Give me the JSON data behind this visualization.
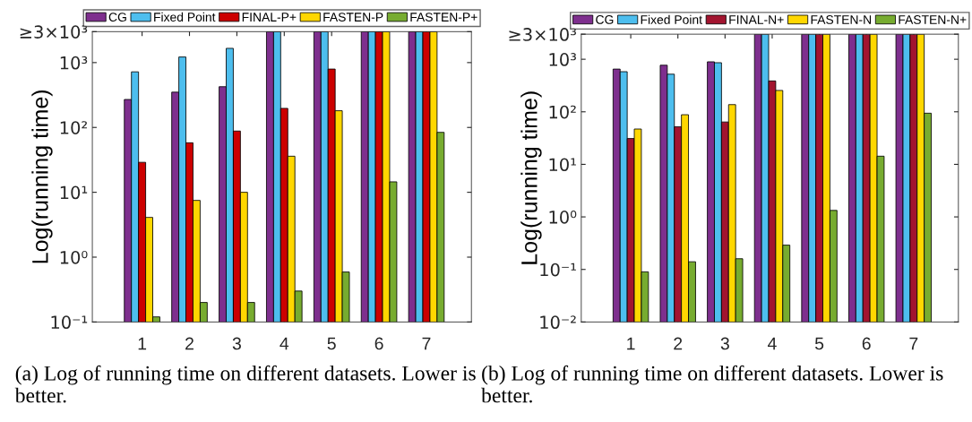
{
  "chart_data": [
    {
      "type": "bar",
      "categories": [
        "1",
        "2",
        "3",
        "4",
        "5",
        "6",
        "7"
      ],
      "ylabel": "Log(running time)",
      "log": true,
      "legend": "top",
      "ylim": [
        0.1,
        3000
      ],
      "yticks": [
        {
          "value": 0.1,
          "label": "10⁻¹"
        },
        {
          "value": 1,
          "label": "10⁰"
        },
        {
          "value": 10,
          "label": "10¹"
        },
        {
          "value": 100,
          "label": "10²"
        },
        {
          "value": 1000,
          "label": "10³"
        },
        {
          "value": 3000,
          "label": "≥3×10³"
        }
      ],
      "series": [
        {
          "name": "CG",
          "color": "#7e2f8e",
          "values": [
            270,
            350,
            425,
            3000,
            3000,
            3000,
            3000
          ]
        },
        {
          "name": "Fixed Point",
          "color": "#4dbeee",
          "values": [
            720,
            1220,
            1660,
            3000,
            3000,
            3000,
            3000
          ]
        },
        {
          "name": "FINAL-P+",
          "color": "#cc0000",
          "values": [
            29,
            58,
            88,
            197,
            795,
            3000,
            3000
          ]
        },
        {
          "name": "FASTEN-P",
          "color": "#ffd700",
          "values": [
            4.1,
            7.5,
            10,
            36,
            181,
            3000,
            3000
          ]
        },
        {
          "name": "FASTEN-P+",
          "color": "#77ac30",
          "values": [
            0.12,
            0.2,
            0.2,
            0.3,
            0.59,
            14.5,
            84
          ]
        }
      ],
      "annotations": [
        "(a) Log of running time on different datasets. Lower is better."
      ]
    },
    {
      "type": "bar",
      "categories": [
        "1",
        "2",
        "3",
        "4",
        "5",
        "6",
        "7"
      ],
      "ylabel": "Log(running time)",
      "log": true,
      "legend": "top",
      "ylim": [
        0.01,
        3000
      ],
      "yticks": [
        {
          "value": 0.01,
          "label": "10⁻²"
        },
        {
          "value": 0.1,
          "label": "10⁻¹"
        },
        {
          "value": 1,
          "label": "10⁰"
        },
        {
          "value": 10,
          "label": "10¹"
        },
        {
          "value": 100,
          "label": "10²"
        },
        {
          "value": 1000,
          "label": "10³"
        },
        {
          "value": 3000,
          "label": "≥3×10³"
        }
      ],
      "series": [
        {
          "name": "CG",
          "color": "#7e2f8e",
          "values": [
            650,
            770,
            895,
            3000,
            3000,
            3000,
            3000
          ]
        },
        {
          "name": "Fixed Point",
          "color": "#4dbeee",
          "values": [
            580,
            520,
            860,
            3000,
            3000,
            3000,
            3000
          ]
        },
        {
          "name": "FINAL-N+",
          "color": "#a2142f",
          "values": [
            31,
            52,
            64,
            387,
            3000,
            3000,
            3000
          ]
        },
        {
          "name": "FASTEN-N",
          "color": "#ffd700",
          "values": [
            47,
            88,
            137,
            255,
            3000,
            3000,
            3000
          ]
        },
        {
          "name": "FASTEN-N+",
          "color": "#77ac30",
          "values": [
            0.09,
            0.14,
            0.16,
            0.29,
            1.33,
            14.3,
            94
          ]
        }
      ],
      "annotations": [
        "(b) Log of running time on different datasets. Lower is better."
      ]
    }
  ]
}
